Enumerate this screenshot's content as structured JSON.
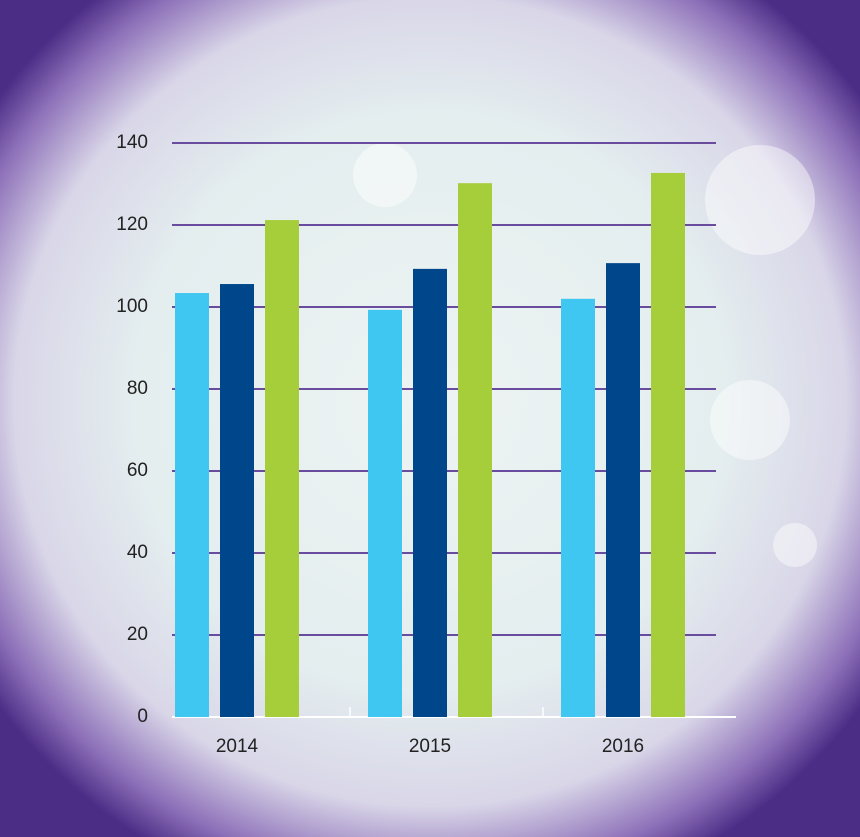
{
  "chart_data": {
    "type": "bar",
    "categories": [
      "2014",
      "2015",
      "2016"
    ],
    "series": [
      {
        "color": "#3fc6f1",
        "values": [
          103.4,
          99.3,
          102
        ]
      },
      {
        "color": "#00468b",
        "values": [
          105.6,
          109.3,
          110.7
        ]
      },
      {
        "color": "#a6cd3a",
        "values": [
          121.2,
          130.2,
          132.7
        ]
      }
    ],
    "ylim": [
      0,
      140
    ],
    "yticks": [
      0,
      20,
      40,
      60,
      80,
      100,
      120,
      140
    ],
    "grid": true
  }
}
